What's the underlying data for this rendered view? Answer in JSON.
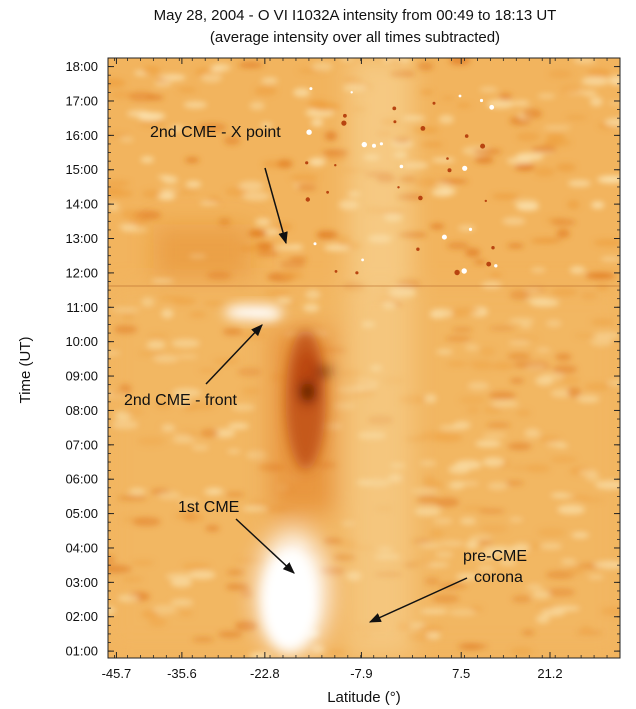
{
  "chart_data": {
    "type": "heatmap",
    "title": "May 28, 2004 - O VI I1032A intensity from 00:49 to 18:13 UT",
    "subtitle": "(average intensity over all times subtracted)",
    "xlabel": "Latitude (°)",
    "ylabel": "Time (UT)",
    "xlim": [
      -47.0,
      32.0
    ],
    "ylim": [
      0.8,
      18.25
    ],
    "x_ticks": [
      "-45.7",
      "-35.6",
      "-22.8",
      "-7.9",
      "7.5",
      "21.2"
    ],
    "x_tick_values": [
      -45.7,
      -35.6,
      -22.8,
      -7.9,
      7.5,
      21.2
    ],
    "y_ticks": [
      "01:00",
      "02:00",
      "03:00",
      "04:00",
      "05:00",
      "06:00",
      "07:00",
      "08:00",
      "09:00",
      "10:00",
      "11:00",
      "12:00",
      "13:00",
      "14:00",
      "15:00",
      "16:00",
      "17:00",
      "18:00"
    ],
    "y_tick_values": [
      1,
      2,
      3,
      4,
      5,
      6,
      7,
      8,
      9,
      10,
      11,
      12,
      13,
      14,
      15,
      16,
      17,
      18
    ],
    "colormap": [
      "#ffffff",
      "#fbe3b0",
      "#f5c070",
      "#eea040",
      "#e07a20",
      "#b84410",
      "#1a0500"
    ],
    "background_color": "#f2b45e",
    "features": [
      {
        "label": "bright 1st CME",
        "lat": -18.5,
        "time": 2.7,
        "value": 1.0
      },
      {
        "label": "dark front region",
        "lat": -16.5,
        "time": 8.6,
        "value": -1.0
      },
      {
        "label": "bright 2nd CME front",
        "lat": -24.5,
        "time": 10.85,
        "value": 0.9
      }
    ],
    "annotations": [
      {
        "text": "2nd CME - X point",
        "arrow_to": {
          "lat": -24.0,
          "time": 12.8
        }
      },
      {
        "text": "2nd CME - front",
        "arrow_to": {
          "lat": -27.5,
          "time": 10.5
        }
      },
      {
        "text": "1st CME",
        "arrow_to": {
          "lat": -23.5,
          "time": 3.3
        }
      },
      {
        "text": "pre-CME\ncorona",
        "arrow_to": {
          "lat": -12.5,
          "time": 1.8
        }
      }
    ],
    "annotation_lines": [
      "2nd CME - X point",
      "2nd CME - front",
      "1st CME",
      "pre-CME",
      "corona"
    ]
  }
}
